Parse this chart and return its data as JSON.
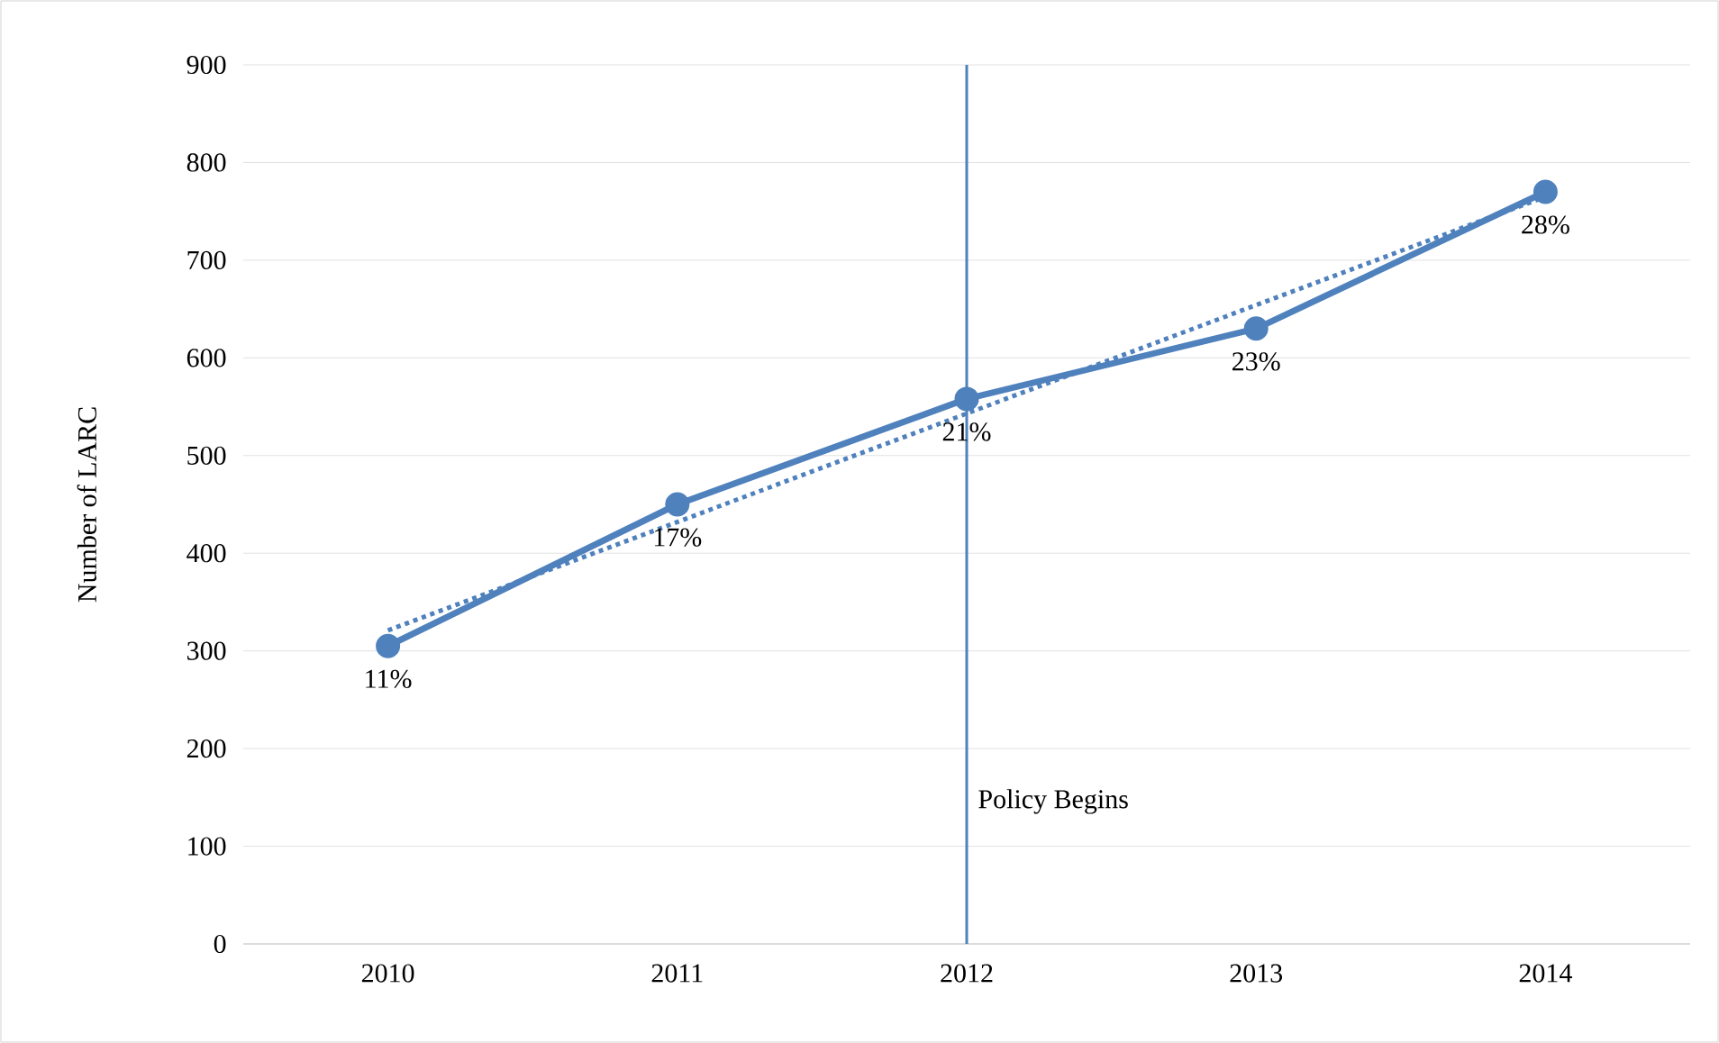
{
  "chart_data": {
    "type": "line",
    "ylabel": "Number of LARC",
    "x": [
      2010,
      2011,
      2012,
      2013,
      2014
    ],
    "series": [
      {
        "color": "#4f81bd",
        "values": [
          305,
          450,
          558,
          630,
          770
        ],
        "marker": "circle",
        "line_style": "solid"
      },
      {
        "color": "#4f81bd",
        "x": [
          2010,
          2014
        ],
        "values": [
          321,
          765
        ],
        "marker": "none",
        "line_style": "dotted"
      }
    ],
    "xlim": [
      2009.5,
      2014.5
    ],
    "xticks": [
      2010,
      2011,
      2012,
      2013,
      2014
    ],
    "ylim": [
      0,
      900
    ],
    "yticks": [
      0,
      100,
      200,
      300,
      400,
      500,
      600,
      700,
      800,
      900
    ],
    "grid": "y",
    "ref_lines": [
      {
        "axis": "x",
        "value": 2012,
        "label": "Policy Begins",
        "color": "#4f81bd",
        "line_style": "solid"
      }
    ],
    "annotations": [
      {
        "text": "11%",
        "x": 2010,
        "y": 305
      },
      {
        "text": "17%",
        "x": 2011,
        "y": 450
      },
      {
        "text": "21%",
        "x": 2012,
        "y": 558
      },
      {
        "text": "23%",
        "x": 2013,
        "y": 630
      },
      {
        "text": "28%",
        "x": 2014,
        "y": 770
      }
    ]
  }
}
